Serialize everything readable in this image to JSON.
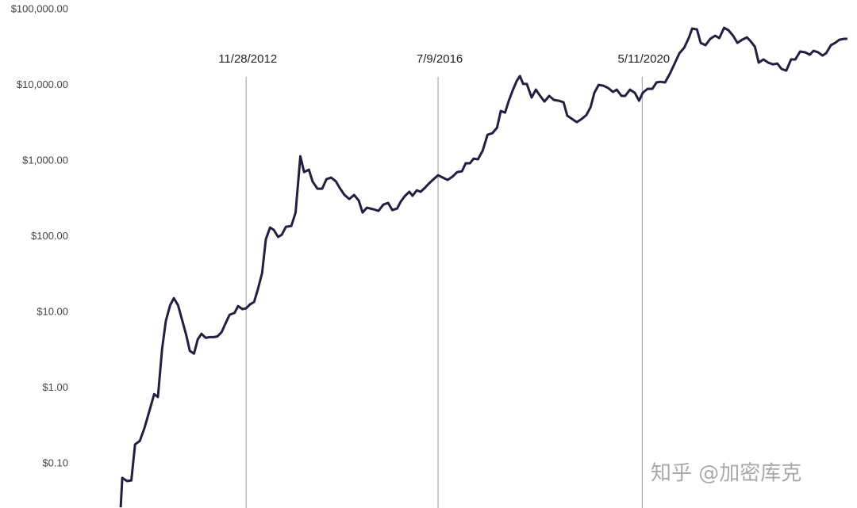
{
  "chart_data": {
    "type": "line",
    "log_y": true,
    "grid": false,
    "color": "#231f3f",
    "xlim": [
      2008.28,
      2024.4
    ],
    "ylim": [
      0.026,
      133700
    ],
    "yticks": [
      {
        "value": 0.1,
        "label": "$0.10"
      },
      {
        "value": 1,
        "label": "$1.00"
      },
      {
        "value": 10,
        "label": "$10.00"
      },
      {
        "value": 100,
        "label": "$100.00"
      },
      {
        "value": 1000,
        "label": "$1,000.00"
      },
      {
        "value": 10000,
        "label": "$10,000.00"
      },
      {
        "value": 100000,
        "label": "$100,000.00"
      }
    ],
    "annotations": [
      {
        "text": "11/28/2012",
        "x": 2012.91
      },
      {
        "text": "7/9/2016",
        "x": 2016.52
      },
      {
        "text": "5/11/2020",
        "x": 2020.36
      }
    ],
    "x": [
      2010.55,
      2010.58,
      2010.67,
      2010.75,
      2010.82,
      2010.91,
      2011.0,
      2011.09,
      2011.18,
      2011.25,
      2011.33,
      2011.4,
      2011.48,
      2011.55,
      2011.63,
      2011.7,
      2011.78,
      2011.85,
      2011.93,
      2012.0,
      2012.07,
      2012.15,
      2012.22,
      2012.3,
      2012.37,
      2012.45,
      2012.52,
      2012.6,
      2012.69,
      2012.76,
      2012.84,
      2012.91,
      2012.98,
      2013.06,
      2013.13,
      2013.21,
      2013.28,
      2013.36,
      2013.43,
      2013.51,
      2013.58,
      2013.66,
      2013.76,
      2013.84,
      2013.93,
      2014.0,
      2014.09,
      2014.16,
      2014.25,
      2014.34,
      2014.42,
      2014.51,
      2014.6,
      2014.67,
      2014.76,
      2014.85,
      2014.94,
      2015.03,
      2015.1,
      2015.18,
      2015.3,
      2015.4,
      2015.49,
      2015.58,
      2015.66,
      2015.75,
      2015.82,
      2015.9,
      2015.98,
      2016.04,
      2016.12,
      2016.19,
      2016.27,
      2016.34,
      2016.42,
      2016.52,
      2016.61,
      2016.7,
      2016.79,
      2016.88,
      2016.97,
      2017.04,
      2017.12,
      2017.19,
      2017.27,
      2017.36,
      2017.45,
      2017.54,
      2017.63,
      2017.7,
      2017.78,
      2017.85,
      2017.93,
      2018.0,
      2018.06,
      2018.12,
      2018.19,
      2018.28,
      2018.36,
      2018.43,
      2018.52,
      2018.61,
      2018.7,
      2018.79,
      2018.88,
      2018.95,
      2019.04,
      2019.13,
      2019.22,
      2019.31,
      2019.39,
      2019.46,
      2019.54,
      2019.63,
      2019.72,
      2019.81,
      2019.88,
      2019.97,
      2020.04,
      2020.13,
      2020.22,
      2020.3,
      2020.37,
      2020.46,
      2020.55,
      2020.63,
      2020.7,
      2020.79,
      2020.88,
      2020.97,
      2021.06,
      2021.15,
      2021.24,
      2021.3,
      2021.39,
      2021.46,
      2021.55,
      2021.64,
      2021.73,
      2021.81,
      2021.9,
      2021.98,
      2022.07,
      2022.15,
      2022.24,
      2022.33,
      2022.4,
      2022.48,
      2022.55,
      2022.64,
      2022.73,
      2022.82,
      2022.9,
      2022.98,
      2023.07,
      2023.16,
      2023.24,
      2023.33,
      2023.43,
      2023.51,
      2023.58,
      2023.67,
      2023.75,
      2023.82,
      2023.91,
      2023.99,
      2024.07,
      2024.16,
      2024.22
    ],
    "values": [
      0.0265,
      0.065,
      0.059,
      0.06,
      0.18,
      0.2,
      0.3,
      0.5,
      0.83,
      0.76,
      3.3,
      7.7,
      12.4,
      15.4,
      12.4,
      8.2,
      5.1,
      3.1,
      2.85,
      4.4,
      5.2,
      4.6,
      4.7,
      4.7,
      4.8,
      5.5,
      7.1,
      9.3,
      9.8,
      12.1,
      11,
      11.3,
      12.7,
      13.7,
      20,
      33,
      92,
      132,
      123,
      99,
      106,
      135,
      138,
      208,
      1155,
      713,
      767,
      535,
      430,
      430,
      574,
      603,
      535,
      440,
      355,
      314,
      355,
      299,
      208,
      241,
      230,
      219,
      265,
      279,
      224,
      235,
      292,
      346,
      391,
      346,
      410,
      391,
      440,
      497,
      561,
      648,
      603,
      561,
      618,
      713,
      731,
      931,
      931,
      1075,
      1050,
      1370,
      2220,
      2325,
      2750,
      4570,
      4350,
      6250,
      8760,
      11400,
      13200,
      10400,
      10400,
      6880,
      8760,
      7400,
      6100,
      7230,
      6400,
      6250,
      5950,
      3960,
      3590,
      3260,
      3590,
      4050,
      5150,
      7950,
      10100,
      9880,
      9190,
      8150,
      8760,
      7230,
      7230,
      8760,
      7950,
      6250,
      7950,
      8970,
      8970,
      10900,
      11100,
      10900,
      14200,
      19400,
      26500,
      31400,
      43000,
      56100,
      54700,
      36300,
      33800,
      41000,
      45100,
      42000,
      57400,
      53500,
      45100,
      36300,
      40000,
      43000,
      38100,
      32200,
      19900,
      21900,
      19900,
      18900,
      19400,
      16400,
      15600,
      21900,
      21900,
      27900,
      27200,
      25300,
      28500,
      27200,
      24700,
      26500,
      33800,
      36300,
      40000,
      41000,
      41000
    ]
  },
  "watermark": "知乎 @加密库克"
}
